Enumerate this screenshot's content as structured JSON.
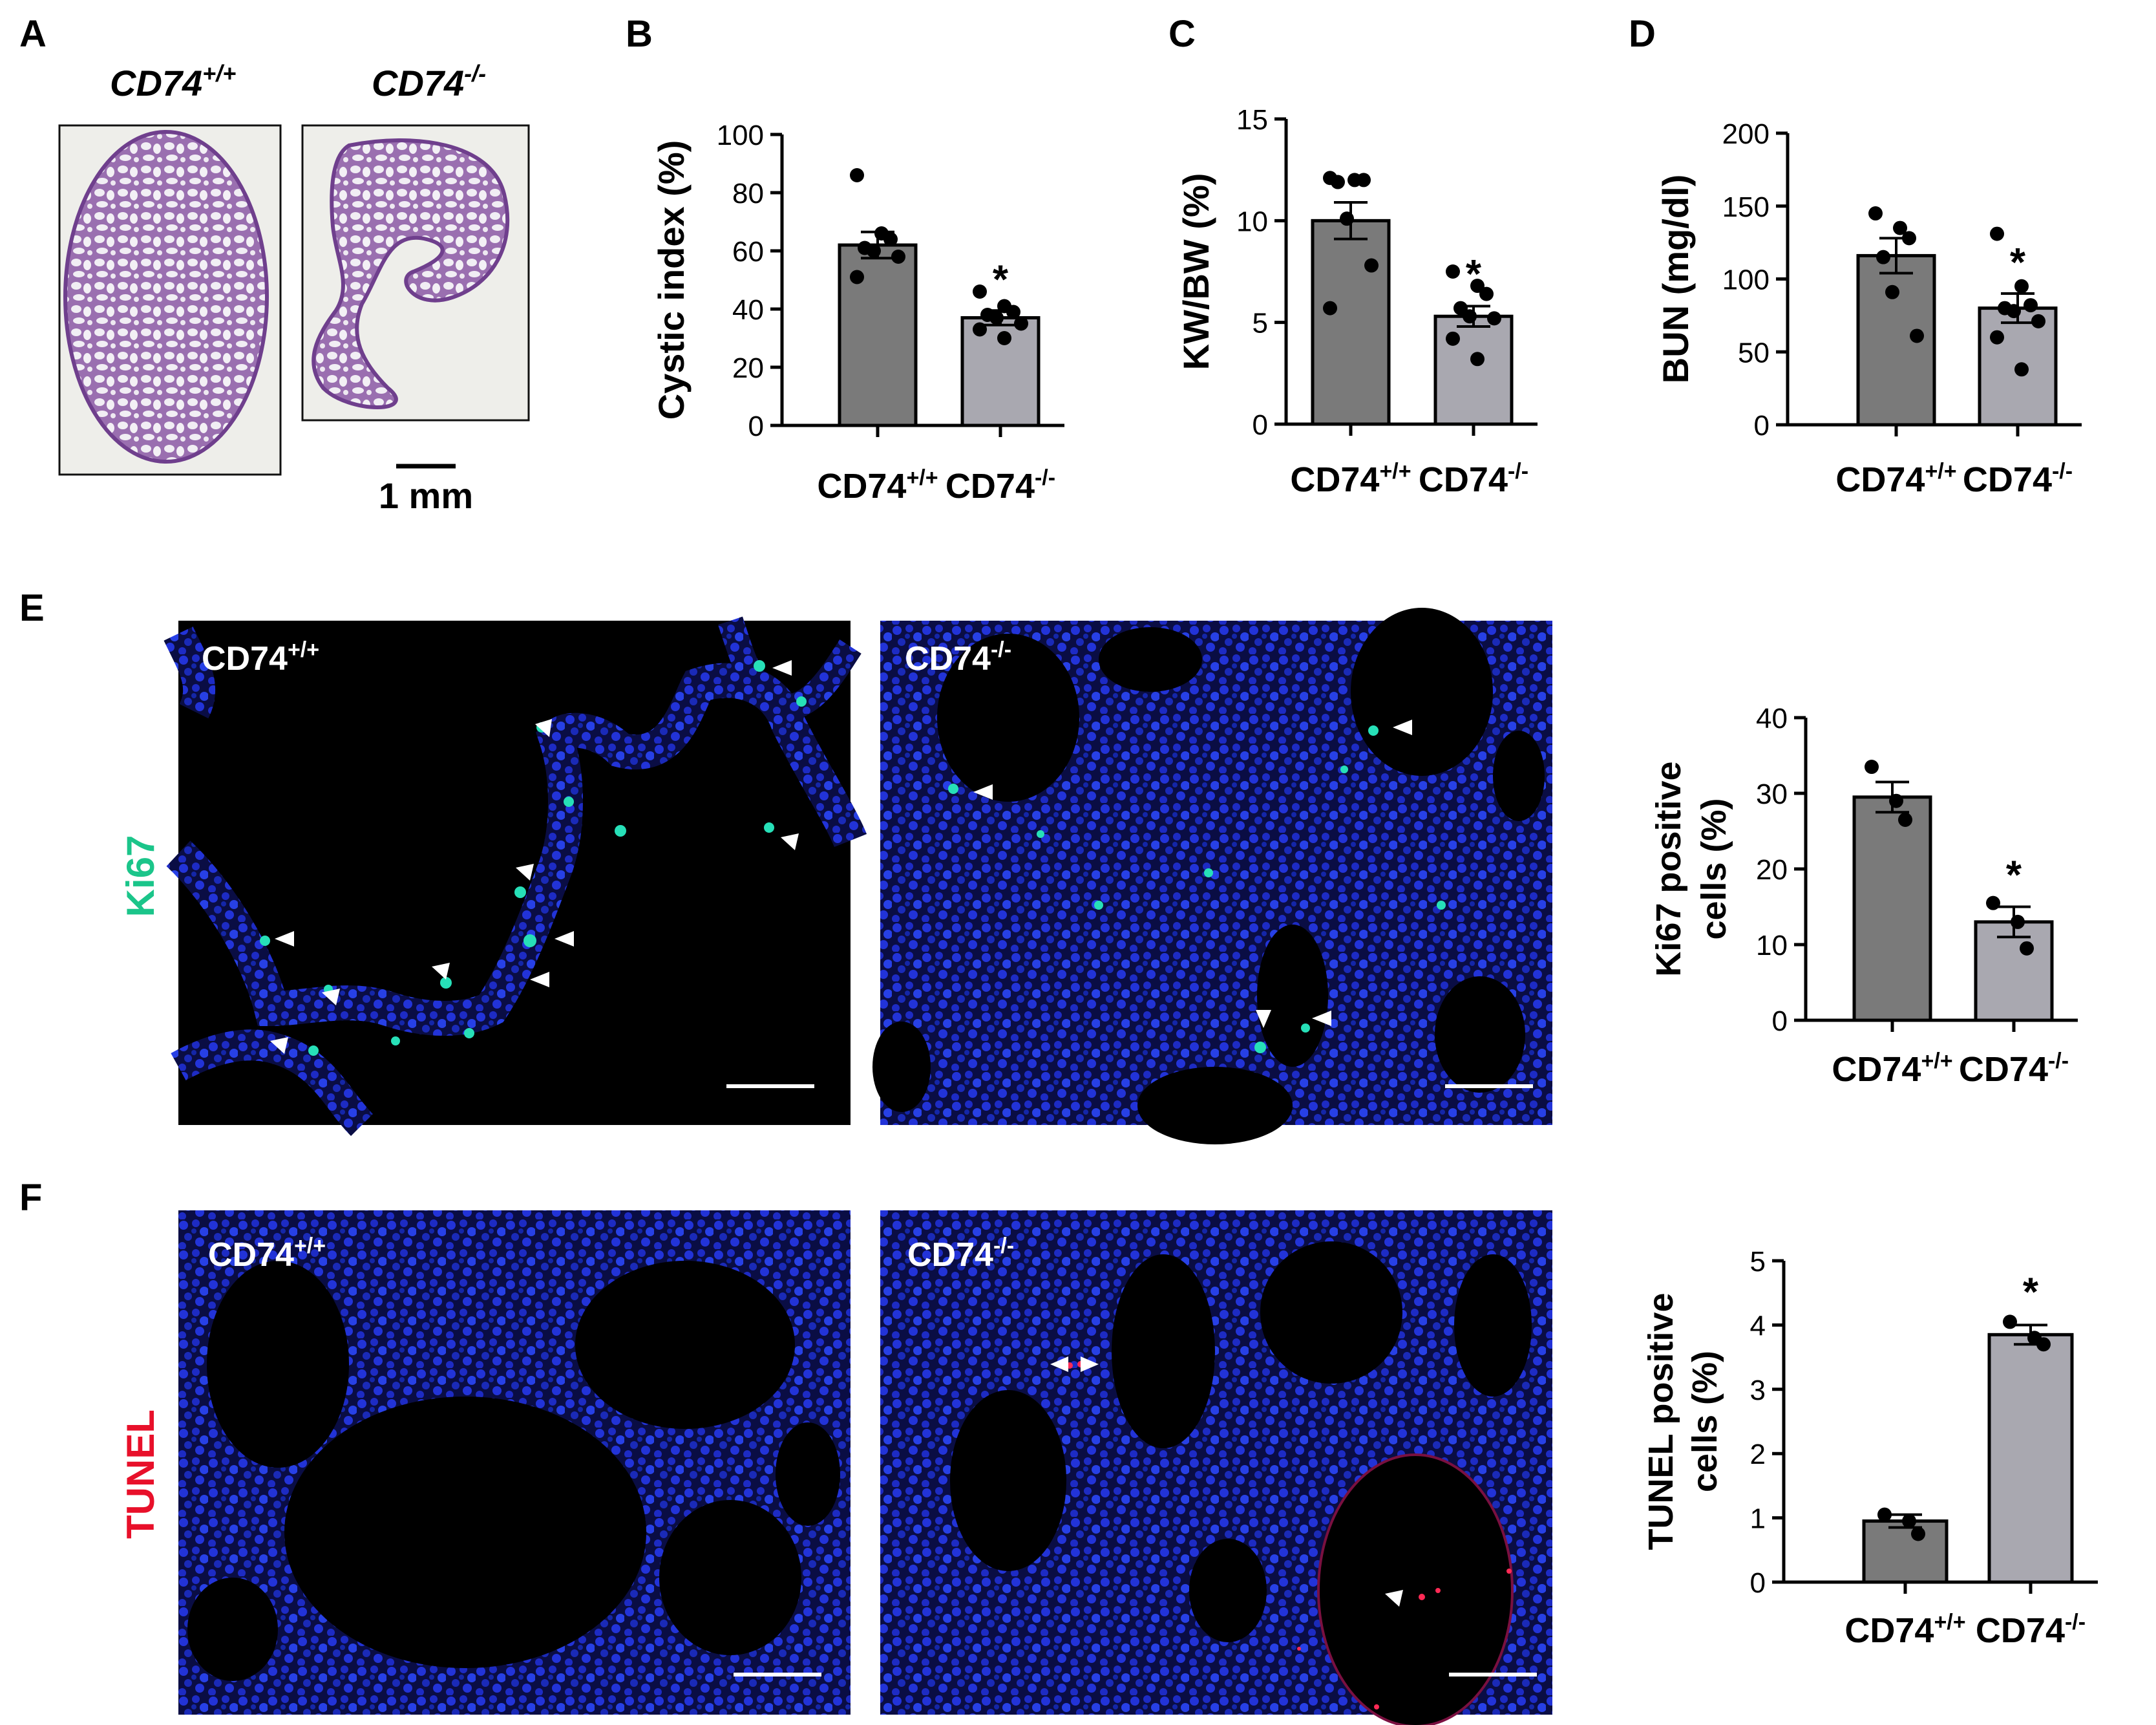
{
  "panels": {
    "A": {
      "letter": "A",
      "wt_label": {
        "base": "CD74",
        "sup": "+/+"
      },
      "ko_label": {
        "base": "CD74",
        "sup": "-/-"
      },
      "scale_bar": "1 mm"
    },
    "E": {
      "letter": "E",
      "stain": "Ki67",
      "stain_color": "#1bc58a",
      "wt_label": {
        "base": "CD74",
        "sup": "+/+"
      },
      "ko_label": {
        "base": "CD74",
        "sup": "-/-"
      }
    },
    "F": {
      "letter": "F",
      "stain": "TUNEL",
      "stain_color": "#e8102a",
      "wt_label": {
        "base": "CD74",
        "sup": "+/+"
      },
      "ko_label": {
        "base": "CD74",
        "sup": "-/-"
      }
    }
  },
  "colors": {
    "wt_bar": "#7a7a7a",
    "ko_bar": "#a9a8b0",
    "nuclei": "#1c2ad6",
    "ki67": "#27e0b8",
    "tunel": "#ff2a55"
  },
  "chart_data": [
    {
      "id": "B",
      "letter": "B",
      "type": "bar",
      "categories": [
        {
          "base": "CD74",
          "sup": "+/+"
        },
        {
          "base": "CD74",
          "sup": "-/-"
        }
      ],
      "ylabel": "Cystic index (%)",
      "ylim": [
        0,
        100
      ],
      "yticks": [
        0,
        20,
        40,
        60,
        80,
        100
      ],
      "values": [
        62,
        37
      ],
      "errors": [
        4.5,
        2.5
      ],
      "points": [
        [
          86,
          66,
          64,
          61,
          60,
          58,
          51
        ],
        [
          46,
          41,
          39,
          38,
          37,
          35,
          33,
          30
        ]
      ],
      "significance": [
        "",
        "*"
      ]
    },
    {
      "id": "C",
      "letter": "C",
      "type": "bar",
      "categories": [
        {
          "base": "CD74",
          "sup": "+/+"
        },
        {
          "base": "CD74",
          "sup": "-/-"
        }
      ],
      "ylabel": "KW/BW (%)",
      "ylim": [
        0,
        15
      ],
      "yticks": [
        0,
        5,
        10,
        15
      ],
      "values": [
        10,
        5.3
      ],
      "errors": [
        0.9,
        0.5
      ],
      "points": [
        [
          12.1,
          12.0,
          12.0,
          11.9,
          10.1,
          7.8,
          5.7
        ],
        [
          7.5,
          6.8,
          6.4,
          5.7,
          5.3,
          5.2,
          4.2,
          3.2
        ]
      ],
      "significance": [
        "",
        "*"
      ]
    },
    {
      "id": "D",
      "letter": "D",
      "type": "bar",
      "categories": [
        {
          "base": "CD74",
          "sup": "+/+"
        },
        {
          "base": "CD74",
          "sup": "-/-"
        }
      ],
      "ylabel": "BUN (mg/dl)",
      "ylim": [
        0,
        200
      ],
      "yticks": [
        0,
        50,
        100,
        150,
        200
      ],
      "values": [
        116,
        80
      ],
      "errors": [
        12,
        10
      ],
      "points": [
        [
          145,
          135,
          128,
          115,
          91,
          61
        ],
        [
          131,
          95,
          82,
          80,
          78,
          71,
          60,
          38
        ]
      ],
      "significance": [
        "",
        "*"
      ]
    },
    {
      "id": "E",
      "type": "bar",
      "categories": [
        {
          "base": "CD74",
          "sup": "+/+"
        },
        {
          "base": "CD74",
          "sup": "-/-"
        }
      ],
      "ylabel_lines": [
        "Ki67 positive",
        "cells (%)"
      ],
      "ylim": [
        0,
        40
      ],
      "yticks": [
        0,
        10,
        20,
        30,
        40
      ],
      "values": [
        29.5,
        13
      ],
      "errors": [
        2,
        2
      ],
      "points": [
        [
          33.5,
          29,
          26.5
        ],
        [
          15.5,
          13,
          9.5
        ]
      ],
      "significance": [
        "",
        "*"
      ]
    },
    {
      "id": "F",
      "type": "bar",
      "categories": [
        {
          "base": "CD74",
          "sup": "+/+"
        },
        {
          "base": "CD74",
          "sup": "-/-"
        }
      ],
      "ylabel_lines": [
        "TUNEL positive",
        "cells (%)"
      ],
      "ylim": [
        0,
        5
      ],
      "yticks": [
        0,
        1,
        2,
        3,
        4,
        5
      ],
      "values": [
        0.95,
        3.85
      ],
      "errors": [
        0.1,
        0.15
      ],
      "points": [
        [
          1.05,
          0.95,
          0.75
        ],
        [
          4.05,
          3.8,
          3.7
        ]
      ],
      "significance": [
        "",
        "*"
      ]
    }
  ]
}
